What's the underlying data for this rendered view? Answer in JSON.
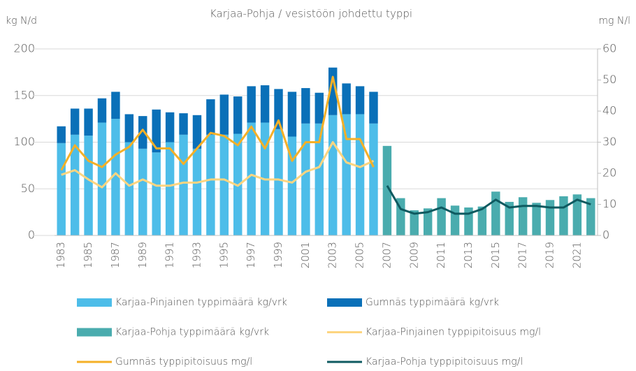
{
  "chart_data": {
    "type": "bar",
    "stacked": true,
    "title": "Karjaa-Pohja / vesistöön johdettu typpi",
    "ylabel": "kg N/d",
    "y2label": "mg N/l",
    "categories": [
      "1983",
      null,
      "1985",
      null,
      "1987",
      null,
      "1989",
      null,
      "1991",
      null,
      "1993",
      null,
      "1995",
      null,
      "1997",
      null,
      "1999",
      null,
      "2001",
      null,
      "2003",
      null,
      "2005",
      null,
      "2007",
      null,
      "2009",
      null,
      "2011",
      null,
      "2013",
      null,
      "2015",
      null,
      "2017",
      null,
      "2019",
      null,
      "2021",
      null
    ],
    "ylim": [
      0,
      200
    ],
    "yticks": [
      0,
      50,
      100,
      150,
      200
    ],
    "y2lim": [
      0,
      60
    ],
    "y2ticks": [
      0,
      10,
      20,
      30,
      40,
      50,
      60
    ],
    "grid": true,
    "legend": "bottom",
    "series": [
      {
        "name": "Karjaa-Pinjainen typpimäärä kg/vrk",
        "kind": "bar",
        "color": "#4dbde9",
        "values": [
          99,
          108,
          107,
          121,
          125,
          100,
          93,
          89,
          100,
          108,
          93,
          108,
          108,
          109,
          121,
          121,
          114,
          106,
          120,
          120,
          129,
          130,
          130,
          120,
          null,
          null,
          null,
          null,
          null,
          null,
          null,
          null,
          null,
          null,
          null,
          null,
          null,
          null,
          null,
          null
        ]
      },
      {
        "name": "Gumnäs typpimäärä kg/vrk",
        "kind": "bar",
        "color": "#0a70b8",
        "values": [
          18,
          28,
          29,
          26,
          29,
          30,
          35,
          46,
          32,
          23,
          36,
          38,
          43,
          40,
          39,
          40,
          43,
          48,
          38,
          33,
          51,
          33,
          30,
          34,
          null,
          null,
          null,
          null,
          null,
          null,
          null,
          null,
          null,
          null,
          null,
          null,
          null,
          null,
          null,
          null
        ]
      },
      {
        "name": "Karjaa-Pohja typpimäärä kg/vrk",
        "kind": "bar",
        "color": "#4aacae",
        "values": [
          null,
          null,
          null,
          null,
          null,
          null,
          null,
          null,
          null,
          null,
          null,
          null,
          null,
          null,
          null,
          null,
          null,
          null,
          null,
          null,
          null,
          null,
          null,
          null,
          96,
          40,
          27,
          29,
          40,
          32,
          30,
          31,
          47,
          36,
          41,
          35,
          38,
          42,
          44,
          40
        ]
      },
      {
        "name": "Karjaa-Pinjainen typpipitoisuus mg/l",
        "kind": "line",
        "axis": "y2",
        "color": "#fdd580",
        "values": [
          19.5,
          21,
          18,
          15.5,
          20,
          16,
          18,
          16,
          16,
          17,
          17,
          18,
          18,
          16,
          19.5,
          18,
          18,
          17,
          20.5,
          22,
          30,
          23.5,
          22,
          24,
          null,
          null,
          null,
          null,
          null,
          null,
          null,
          null,
          null,
          null,
          null,
          null,
          null,
          null,
          null,
          null
        ]
      },
      {
        "name": "Gumnäs typpipitoisuus mg/l",
        "kind": "line",
        "axis": "y2",
        "color": "#f5b027",
        "values": [
          21,
          29,
          24,
          22,
          26,
          28.5,
          34,
          28,
          28,
          23,
          28,
          33,
          32,
          29,
          35,
          28,
          37,
          24,
          30,
          30,
          51,
          31,
          31,
          22,
          null,
          null,
          null,
          null,
          null,
          null,
          null,
          null,
          null,
          null,
          null,
          null,
          null,
          null,
          null,
          null
        ]
      },
      {
        "name": "Karjaa-Pohja typpipitoisuus mg/l",
        "kind": "line",
        "axis": "y2",
        "color": "#0e5a60",
        "values": [
          null,
          null,
          null,
          null,
          null,
          null,
          null,
          null,
          null,
          null,
          null,
          null,
          null,
          null,
          null,
          null,
          null,
          null,
          null,
          null,
          null,
          null,
          null,
          null,
          16,
          8.5,
          7,
          7.5,
          9,
          7,
          7,
          8.5,
          11.5,
          9,
          9.5,
          9.5,
          9,
          9,
          11.5,
          10
        ]
      }
    ]
  }
}
